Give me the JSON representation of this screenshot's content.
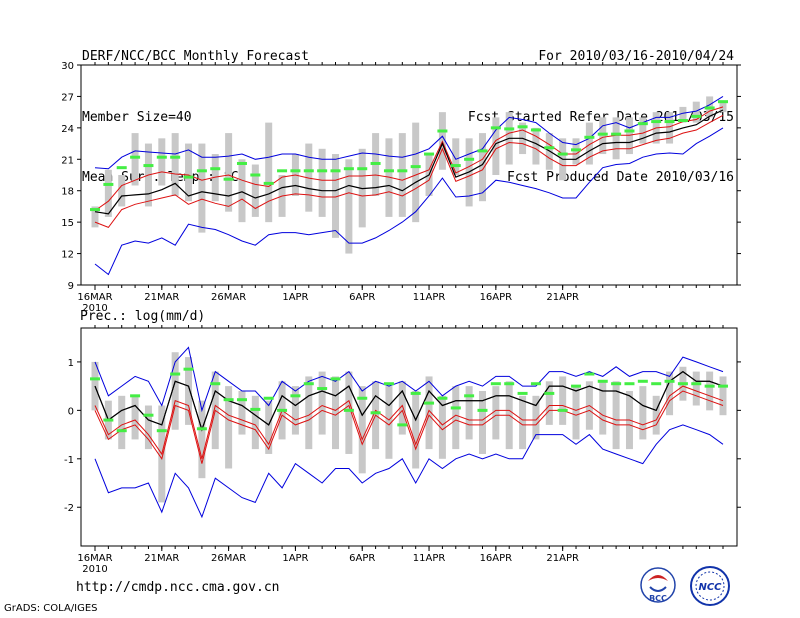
{
  "header": {
    "left": [
      "DERF/NCC/BCC Monthly Forecast",
      "Member Size=40",
      "Mean Surf. Temp.: °C"
    ],
    "right": [
      "For 2010/03/16-2010/04/24",
      "Fcst Started Refer Date 2010/03/15",
      "Fcst Produced Date 2010/03/16"
    ]
  },
  "footer": {
    "url": "http://cmdp.ncc.cma.gov.cn",
    "grads": "GrADS: COLA/IGES",
    "logo_left": "BCC",
    "logo_right": "NCC"
  },
  "colors": {
    "mean": "#000000",
    "upper": "#0000dd",
    "lower": "#dd1111",
    "red_envelope": "#dd1111",
    "box": "#c8c8c8",
    "obs": "#44ee44"
  },
  "chart_data": [
    {
      "type": "line",
      "title": "Mean Surf. Temp.: °C",
      "x_tick_labels": [
        "16MAR",
        "21MAR",
        "26MAR",
        "1APR",
        "6APR",
        "11APR",
        "16APR",
        "21APR"
      ],
      "x_year_label": "2010",
      "ylim": [
        9,
        30
      ],
      "yticks": [
        9,
        12,
        15,
        18,
        21,
        24,
        27,
        30
      ],
      "days": 40,
      "series": [
        {
          "name": "max",
          "color": "#0000dd",
          "values": [
            20.2,
            20.1,
            21.2,
            21.8,
            21.7,
            21.6,
            21.5,
            21.9,
            21.2,
            21.2,
            21.3,
            21.5,
            21.0,
            21.2,
            21.5,
            21.5,
            21.2,
            21.0,
            21.0,
            21.3,
            21.6,
            21.5,
            21.3,
            21.2,
            21.5,
            22.0,
            23.2,
            21.0,
            21.5,
            22.0,
            23.8,
            25.0,
            24.8,
            24.5,
            23.5,
            22.6,
            22.4,
            23.0,
            24.2,
            24.5,
            24.0,
            24.5,
            25.0,
            25.0,
            25.4,
            25.6,
            26.2,
            27.0
          ]
        },
        {
          "name": "upper",
          "color": "#dd1111",
          "values": [
            16.1,
            17.0,
            18.5,
            19.0,
            19.5,
            19.8,
            19.6,
            19.5,
            19.0,
            19.3,
            19.5,
            19.0,
            18.6,
            18.4,
            19.3,
            19.5,
            19.2,
            19.0,
            19.0,
            19.4,
            19.4,
            19.5,
            19.3,
            19.0,
            19.5,
            20.0,
            22.7,
            19.7,
            20.3,
            21.0,
            22.8,
            23.5,
            23.8,
            23.2,
            22.4,
            21.5,
            21.5,
            22.4,
            23.1,
            23.3,
            23.3,
            23.5,
            24.0,
            24.1,
            24.6,
            24.8,
            25.6,
            26.0
          ]
        },
        {
          "name": "mean",
          "color": "#000000",
          "values": [
            16.0,
            15.8,
            17.5,
            17.6,
            17.7,
            18.1,
            18.7,
            17.5,
            17.9,
            17.7,
            17.5,
            17.9,
            17.3,
            17.7,
            18.3,
            18.5,
            18.2,
            18.0,
            18.0,
            18.5,
            18.2,
            18.3,
            18.5,
            18.0,
            18.8,
            19.5,
            22.5,
            19.3,
            19.8,
            20.5,
            22.5,
            23.0,
            23.0,
            22.5,
            21.8,
            21.0,
            21.0,
            21.8,
            22.5,
            22.6,
            22.6,
            23.0,
            23.5,
            23.6,
            24.0,
            24.3,
            25.1,
            25.7
          ]
        },
        {
          "name": "lower",
          "color": "#dd1111",
          "values": [
            15.0,
            14.5,
            16.2,
            16.7,
            17.0,
            17.3,
            17.6,
            16.7,
            17.2,
            16.8,
            16.5,
            17.2,
            16.3,
            17.0,
            17.5,
            17.7,
            17.6,
            17.4,
            17.4,
            17.8,
            17.5,
            17.6,
            17.9,
            17.5,
            18.2,
            19.0,
            22.0,
            18.9,
            19.4,
            20.0,
            22.0,
            22.6,
            22.5,
            22.0,
            21.1,
            20.4,
            20.4,
            21.2,
            21.8,
            22.0,
            22.0,
            22.4,
            22.8,
            23.0,
            23.5,
            23.8,
            24.5,
            25.2
          ]
        },
        {
          "name": "min",
          "color": "#0000dd",
          "values": [
            11.0,
            10.0,
            12.8,
            13.2,
            13.0,
            13.5,
            12.8,
            14.8,
            14.5,
            14.3,
            13.8,
            13.2,
            12.8,
            13.8,
            14.0,
            14.0,
            13.8,
            14.0,
            14.2,
            13.0,
            13.0,
            13.5,
            14.2,
            15.0,
            16.0,
            17.5,
            19.2,
            17.4,
            17.5,
            17.8,
            19.0,
            18.8,
            18.5,
            18.2,
            17.8,
            17.3,
            17.3,
            18.8,
            20.2,
            20.5,
            20.6,
            21.2,
            21.5,
            21.6,
            21.5,
            22.5,
            23.2,
            24.0
          ]
        }
      ],
      "boxes": [
        [
          14.5,
          16.5
        ],
        [
          15.5,
          20.0
        ],
        [
          16.5,
          19.5
        ],
        [
          18.5,
          23.5
        ],
        [
          16.5,
          22.5
        ],
        [
          18.5,
          23.0
        ],
        [
          17.5,
          23.5
        ],
        [
          17.0,
          22.5
        ],
        [
          14.0,
          22.5
        ],
        [
          17.0,
          21.5
        ],
        [
          16.0,
          23.5
        ],
        [
          15.0,
          21.0
        ],
        [
          15.5,
          20.5
        ],
        [
          15.0,
          24.5
        ],
        [
          15.5,
          19.5
        ],
        [
          17.5,
          21.5
        ],
        [
          16.0,
          22.5
        ],
        [
          15.5,
          22.0
        ],
        [
          13.5,
          21.5
        ],
        [
          12.0,
          21.0
        ],
        [
          14.5,
          22.0
        ],
        [
          17.5,
          23.5
        ],
        [
          15.5,
          23.0
        ],
        [
          15.5,
          23.5
        ],
        [
          15.0,
          24.5
        ],
        [
          17.5,
          21.5
        ],
        [
          20.0,
          25.5
        ],
        [
          19.5,
          23.0
        ],
        [
          16.5,
          23.0
        ],
        [
          17.0,
          23.5
        ],
        [
          19.5,
          25.0
        ],
        [
          20.5,
          25.5
        ],
        [
          21.5,
          24.5
        ],
        [
          20.5,
          24.0
        ],
        [
          20.0,
          23.5
        ],
        [
          19.0,
          23.0
        ],
        [
          20.5,
          23.0
        ],
        [
          20.5,
          24.5
        ],
        [
          21.5,
          25.0
        ],
        [
          21.0,
          25.0
        ],
        [
          21.5,
          25.0
        ],
        [
          22.5,
          25.0
        ],
        [
          22.5,
          25.5
        ],
        [
          22.5,
          25.5
        ],
        [
          24.5,
          26.0
        ],
        [
          24.5,
          26.5
        ],
        [
          25.0,
          27.0
        ],
        [
          25.5,
          26.5
        ]
      ],
      "observed": [
        16.2,
        18.6,
        20.2,
        21.2,
        20.4,
        21.2,
        21.2,
        19.3,
        19.9,
        20.1,
        19.1,
        20.6,
        19.5,
        18.7,
        19.9,
        19.9,
        19.9,
        19.9,
        19.9,
        20.1,
        20.1,
        20.6,
        19.9,
        19.9,
        20.3,
        21.5,
        23.7,
        20.4,
        21.0,
        21.8,
        24.0,
        23.9,
        24.1,
        23.8,
        22.1,
        21.5,
        21.9,
        23.1,
        23.4,
        23.4,
        23.7,
        24.4,
        24.6,
        24.6,
        24.7,
        25.1,
        25.9,
        26.5
      ]
    },
    {
      "type": "line",
      "title": "Prec.: log(mm/d)",
      "x_tick_labels": [
        "16MAR",
        "21MAR",
        "26MAR",
        "1APR",
        "6APR",
        "11APR",
        "16APR",
        "21APR"
      ],
      "x_year_label": "2010",
      "ylim": [
        -2.8,
        1.7
      ],
      "yticks": [
        -2,
        -1,
        0,
        1
      ],
      "days": 40,
      "series": [
        {
          "name": "max",
          "color": "#0000dd",
          "values": [
            1.0,
            0.3,
            0.5,
            0.7,
            0.6,
            0.1,
            1.0,
            1.3,
            0.0,
            0.8,
            0.6,
            0.4,
            0.4,
            0.1,
            0.6,
            0.4,
            0.6,
            0.7,
            0.6,
            0.8,
            0.4,
            0.6,
            0.5,
            0.6,
            0.4,
            0.6,
            0.3,
            0.5,
            0.6,
            0.5,
            0.7,
            0.7,
            0.5,
            0.5,
            0.8,
            0.8,
            0.7,
            0.8,
            0.7,
            0.9,
            0.7,
            0.8,
            0.8,
            0.7,
            1.1,
            1.0,
            0.9,
            0.8
          ]
        },
        {
          "name": "upper",
          "color": "#000000",
          "values": [
            0.5,
            -0.2,
            0.0,
            0.1,
            -0.2,
            -0.3,
            0.6,
            0.5,
            -0.4,
            0.4,
            0.2,
            0.1,
            -0.1,
            -0.3,
            0.3,
            0.1,
            0.3,
            0.4,
            0.3,
            0.5,
            -0.1,
            0.3,
            0.1,
            0.4,
            -0.2,
            0.4,
            0.1,
            0.2,
            0.2,
            0.2,
            0.3,
            0.3,
            0.2,
            0.1,
            0.5,
            0.5,
            0.4,
            0.5,
            0.4,
            0.4,
            0.3,
            0.1,
            0.0,
            0.6,
            0.8,
            0.6,
            0.6,
            0.5
          ]
        },
        {
          "name": "mean",
          "color": "#000000",
          "values": [
            0.5,
            -0.2,
            0.0,
            0.1,
            -0.2,
            -0.3,
            0.6,
            0.5,
            -0.4,
            0.4,
            0.2,
            0.1,
            -0.1,
            -0.3,
            0.3,
            0.1,
            0.3,
            0.4,
            0.3,
            0.5,
            -0.1,
            0.3,
            0.1,
            0.4,
            -0.2,
            0.4,
            0.1,
            0.2,
            0.2,
            0.2,
            0.3,
            0.3,
            0.2,
            0.1,
            0.5,
            0.5,
            0.4,
            0.5,
            0.4,
            0.4,
            0.3,
            0.1,
            0.0,
            0.6,
            0.8,
            0.6,
            0.6,
            0.5
          ]
        },
        {
          "name": "lower",
          "color": "#dd1111",
          "values": [
            0.1,
            -0.5,
            -0.3,
            -0.2,
            -0.5,
            -0.9,
            0.2,
            0.1,
            -1.0,
            0.1,
            -0.1,
            -0.2,
            -0.3,
            -0.7,
            0.0,
            -0.2,
            -0.1,
            0.1,
            0.0,
            0.2,
            -0.6,
            0.0,
            -0.2,
            0.1,
            -0.7,
            0.0,
            -0.3,
            -0.1,
            -0.2,
            -0.2,
            0.0,
            0.0,
            -0.2,
            -0.2,
            0.1,
            0.1,
            0.0,
            0.1,
            -0.1,
            -0.2,
            -0.2,
            -0.3,
            -0.2,
            0.3,
            0.5,
            0.4,
            0.3,
            0.2
          ]
        },
        {
          "name": "min",
          "color": "#0000dd",
          "values": [
            -1.0,
            -1.7,
            -1.6,
            -1.6,
            -1.5,
            -2.1,
            -1.3,
            -1.6,
            -2.2,
            -1.4,
            -1.6,
            -1.8,
            -1.9,
            -1.3,
            -1.6,
            -1.1,
            -1.3,
            -1.5,
            -1.2,
            -1.2,
            -1.5,
            -1.3,
            -1.2,
            -1.0,
            -1.5,
            -1.0,
            -1.2,
            -1.0,
            -0.9,
            -1.0,
            -0.9,
            -1.0,
            -1.0,
            -0.5,
            -0.5,
            -0.5,
            -0.7,
            -0.5,
            -0.8,
            -0.9,
            -1.0,
            -1.1,
            -0.7,
            -0.4,
            -0.3,
            -0.4,
            -0.5,
            -0.7
          ]
        },
        {
          "name": "lower2",
          "color": "#dd1111",
          "values": [
            0.0,
            -0.6,
            -0.4,
            -0.3,
            -0.6,
            -1.0,
            0.1,
            0.0,
            -1.1,
            0.0,
            -0.2,
            -0.3,
            -0.4,
            -0.8,
            -0.1,
            -0.3,
            -0.2,
            0.0,
            -0.1,
            0.1,
            -0.7,
            -0.1,
            -0.3,
            0.0,
            -0.8,
            -0.1,
            -0.4,
            -0.2,
            -0.3,
            -0.3,
            -0.1,
            -0.1,
            -0.3,
            -0.3,
            0.0,
            0.0,
            -0.1,
            0.0,
            -0.2,
            -0.3,
            -0.3,
            -0.4,
            -0.3,
            0.2,
            0.4,
            0.3,
            0.2,
            0.1
          ]
        }
      ],
      "boxes": [
        [
          0.0,
          1.0
        ],
        [
          -0.6,
          0.2
        ],
        [
          -0.8,
          0.3
        ],
        [
          -0.6,
          0.3
        ],
        [
          -0.8,
          0.1
        ],
        [
          -1.9,
          0.1
        ],
        [
          -0.4,
          1.2
        ],
        [
          -0.3,
          1.1
        ],
        [
          -1.4,
          0.2
        ],
        [
          -0.8,
          0.8
        ],
        [
          -1.2,
          0.5
        ],
        [
          -0.5,
          0.4
        ],
        [
          -0.8,
          0.3
        ],
        [
          -0.9,
          0.2
        ],
        [
          -0.6,
          0.6
        ],
        [
          -0.5,
          0.5
        ],
        [
          -0.8,
          0.7
        ],
        [
          -0.5,
          0.8
        ],
        [
          -0.8,
          0.7
        ],
        [
          -0.9,
          0.8
        ],
        [
          -1.3,
          0.5
        ],
        [
          -0.8,
          0.6
        ],
        [
          -1.0,
          0.5
        ],
        [
          -0.5,
          0.6
        ],
        [
          -1.2,
          0.4
        ],
        [
          -0.8,
          0.7
        ],
        [
          -1.0,
          0.3
        ],
        [
          -0.8,
          0.5
        ],
        [
          -0.6,
          0.5
        ],
        [
          -0.9,
          0.4
        ],
        [
          -0.6,
          0.5
        ],
        [
          -0.8,
          0.6
        ],
        [
          -0.8,
          0.3
        ],
        [
          -0.6,
          0.3
        ],
        [
          -0.3,
          0.6
        ],
        [
          -0.3,
          0.7
        ],
        [
          -0.6,
          0.5
        ],
        [
          -0.4,
          0.6
        ],
        [
          -0.5,
          0.6
        ],
        [
          -0.8,
          0.6
        ],
        [
          -0.8,
          0.4
        ],
        [
          -0.6,
          0.5
        ],
        [
          -0.5,
          0.3
        ],
        [
          -0.1,
          0.8
        ],
        [
          0.2,
          0.9
        ],
        [
          0.1,
          0.8
        ],
        [
          0.0,
          0.8
        ],
        [
          -0.1,
          0.7
        ]
      ],
      "observed": [
        0.65,
        -0.2,
        -0.42,
        0.3,
        -0.1,
        -0.42,
        0.75,
        0.85,
        -0.38,
        0.55,
        0.22,
        0.22,
        0.02,
        0.25,
        0.0,
        0.3,
        0.55,
        0.45,
        0.65,
        0.0,
        0.25,
        -0.05,
        0.55,
        -0.3,
        0.35,
        0.15,
        0.25,
        0.05,
        0.3,
        0.0,
        0.55,
        0.55,
        0.35,
        0.55,
        0.35,
        0.0,
        0.5,
        0.75,
        0.6,
        0.55,
        0.55,
        0.6,
        0.55,
        0.6,
        0.55,
        0.55,
        0.5,
        0.5
      ]
    }
  ]
}
